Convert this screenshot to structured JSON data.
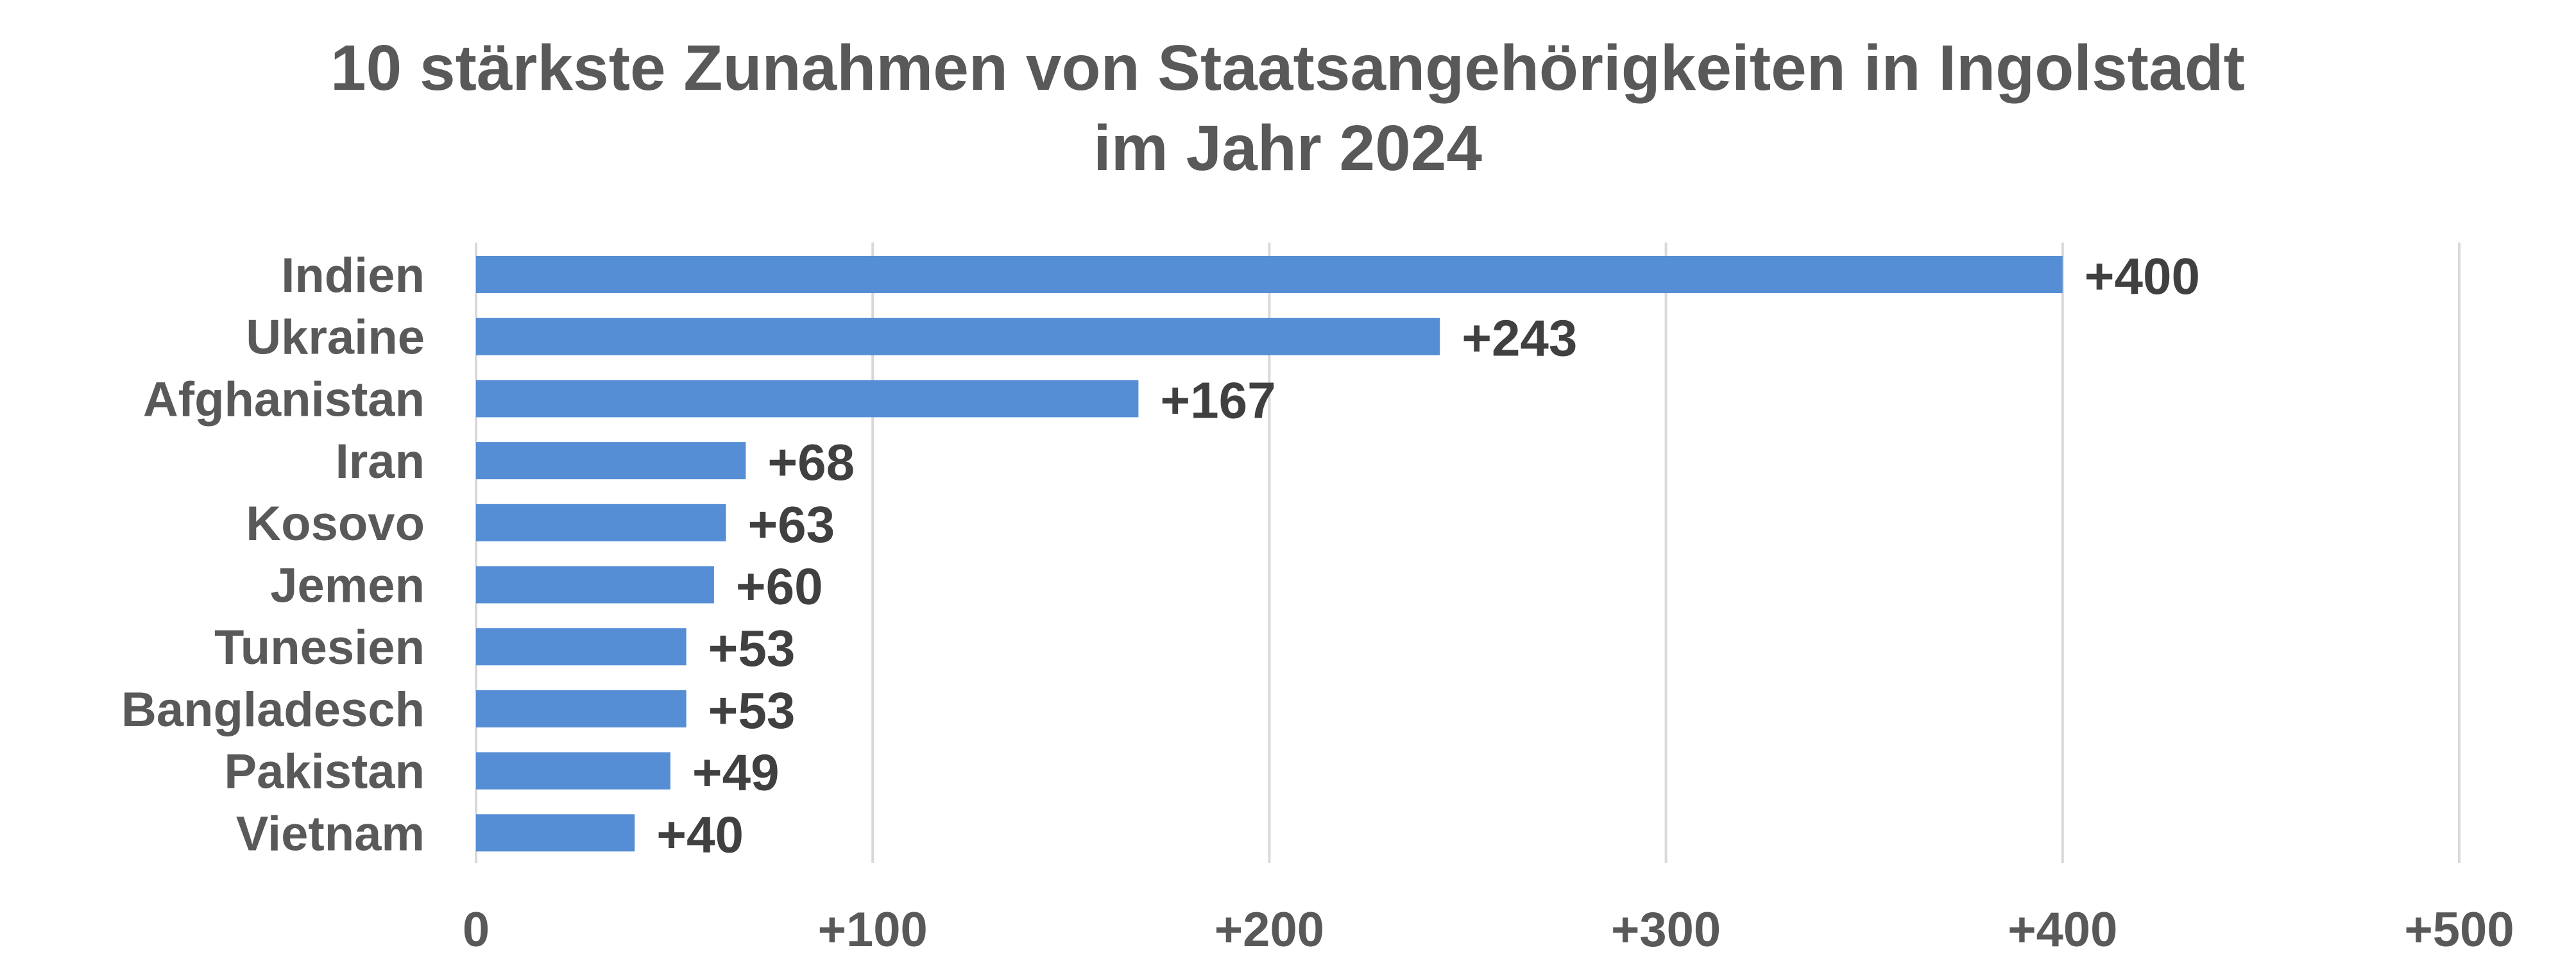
{
  "chart_data": {
    "type": "bar",
    "orientation": "horizontal",
    "title": [
      "10 stärkste Zunahmen von Staatsangehörigkeiten in Ingolstadt",
      "im Jahr 2024"
    ],
    "categories": [
      "Indien",
      "Ukraine",
      "Afghanistan",
      "Iran",
      "Kosovo",
      "Jemen",
      "Tunesien",
      "Bangladesch",
      "Pakistan",
      "Vietnam"
    ],
    "values": [
      400,
      243,
      167,
      68,
      63,
      60,
      53,
      53,
      49,
      40
    ],
    "data_labels": [
      "+400",
      "+243",
      "+167",
      "+68",
      "+63",
      "+60",
      "+53",
      "+53",
      "+49",
      "+40"
    ],
    "x_ticks": [
      0,
      100,
      200,
      300,
      400,
      500
    ],
    "x_tick_labels": [
      "0",
      "+100",
      "+200",
      "+300",
      "+400",
      "+500"
    ],
    "xlim": [
      0,
      500
    ],
    "xlabel": "",
    "ylabel": "",
    "grid": "vertical",
    "legend": "none",
    "bar_color": "#558ed5"
  }
}
